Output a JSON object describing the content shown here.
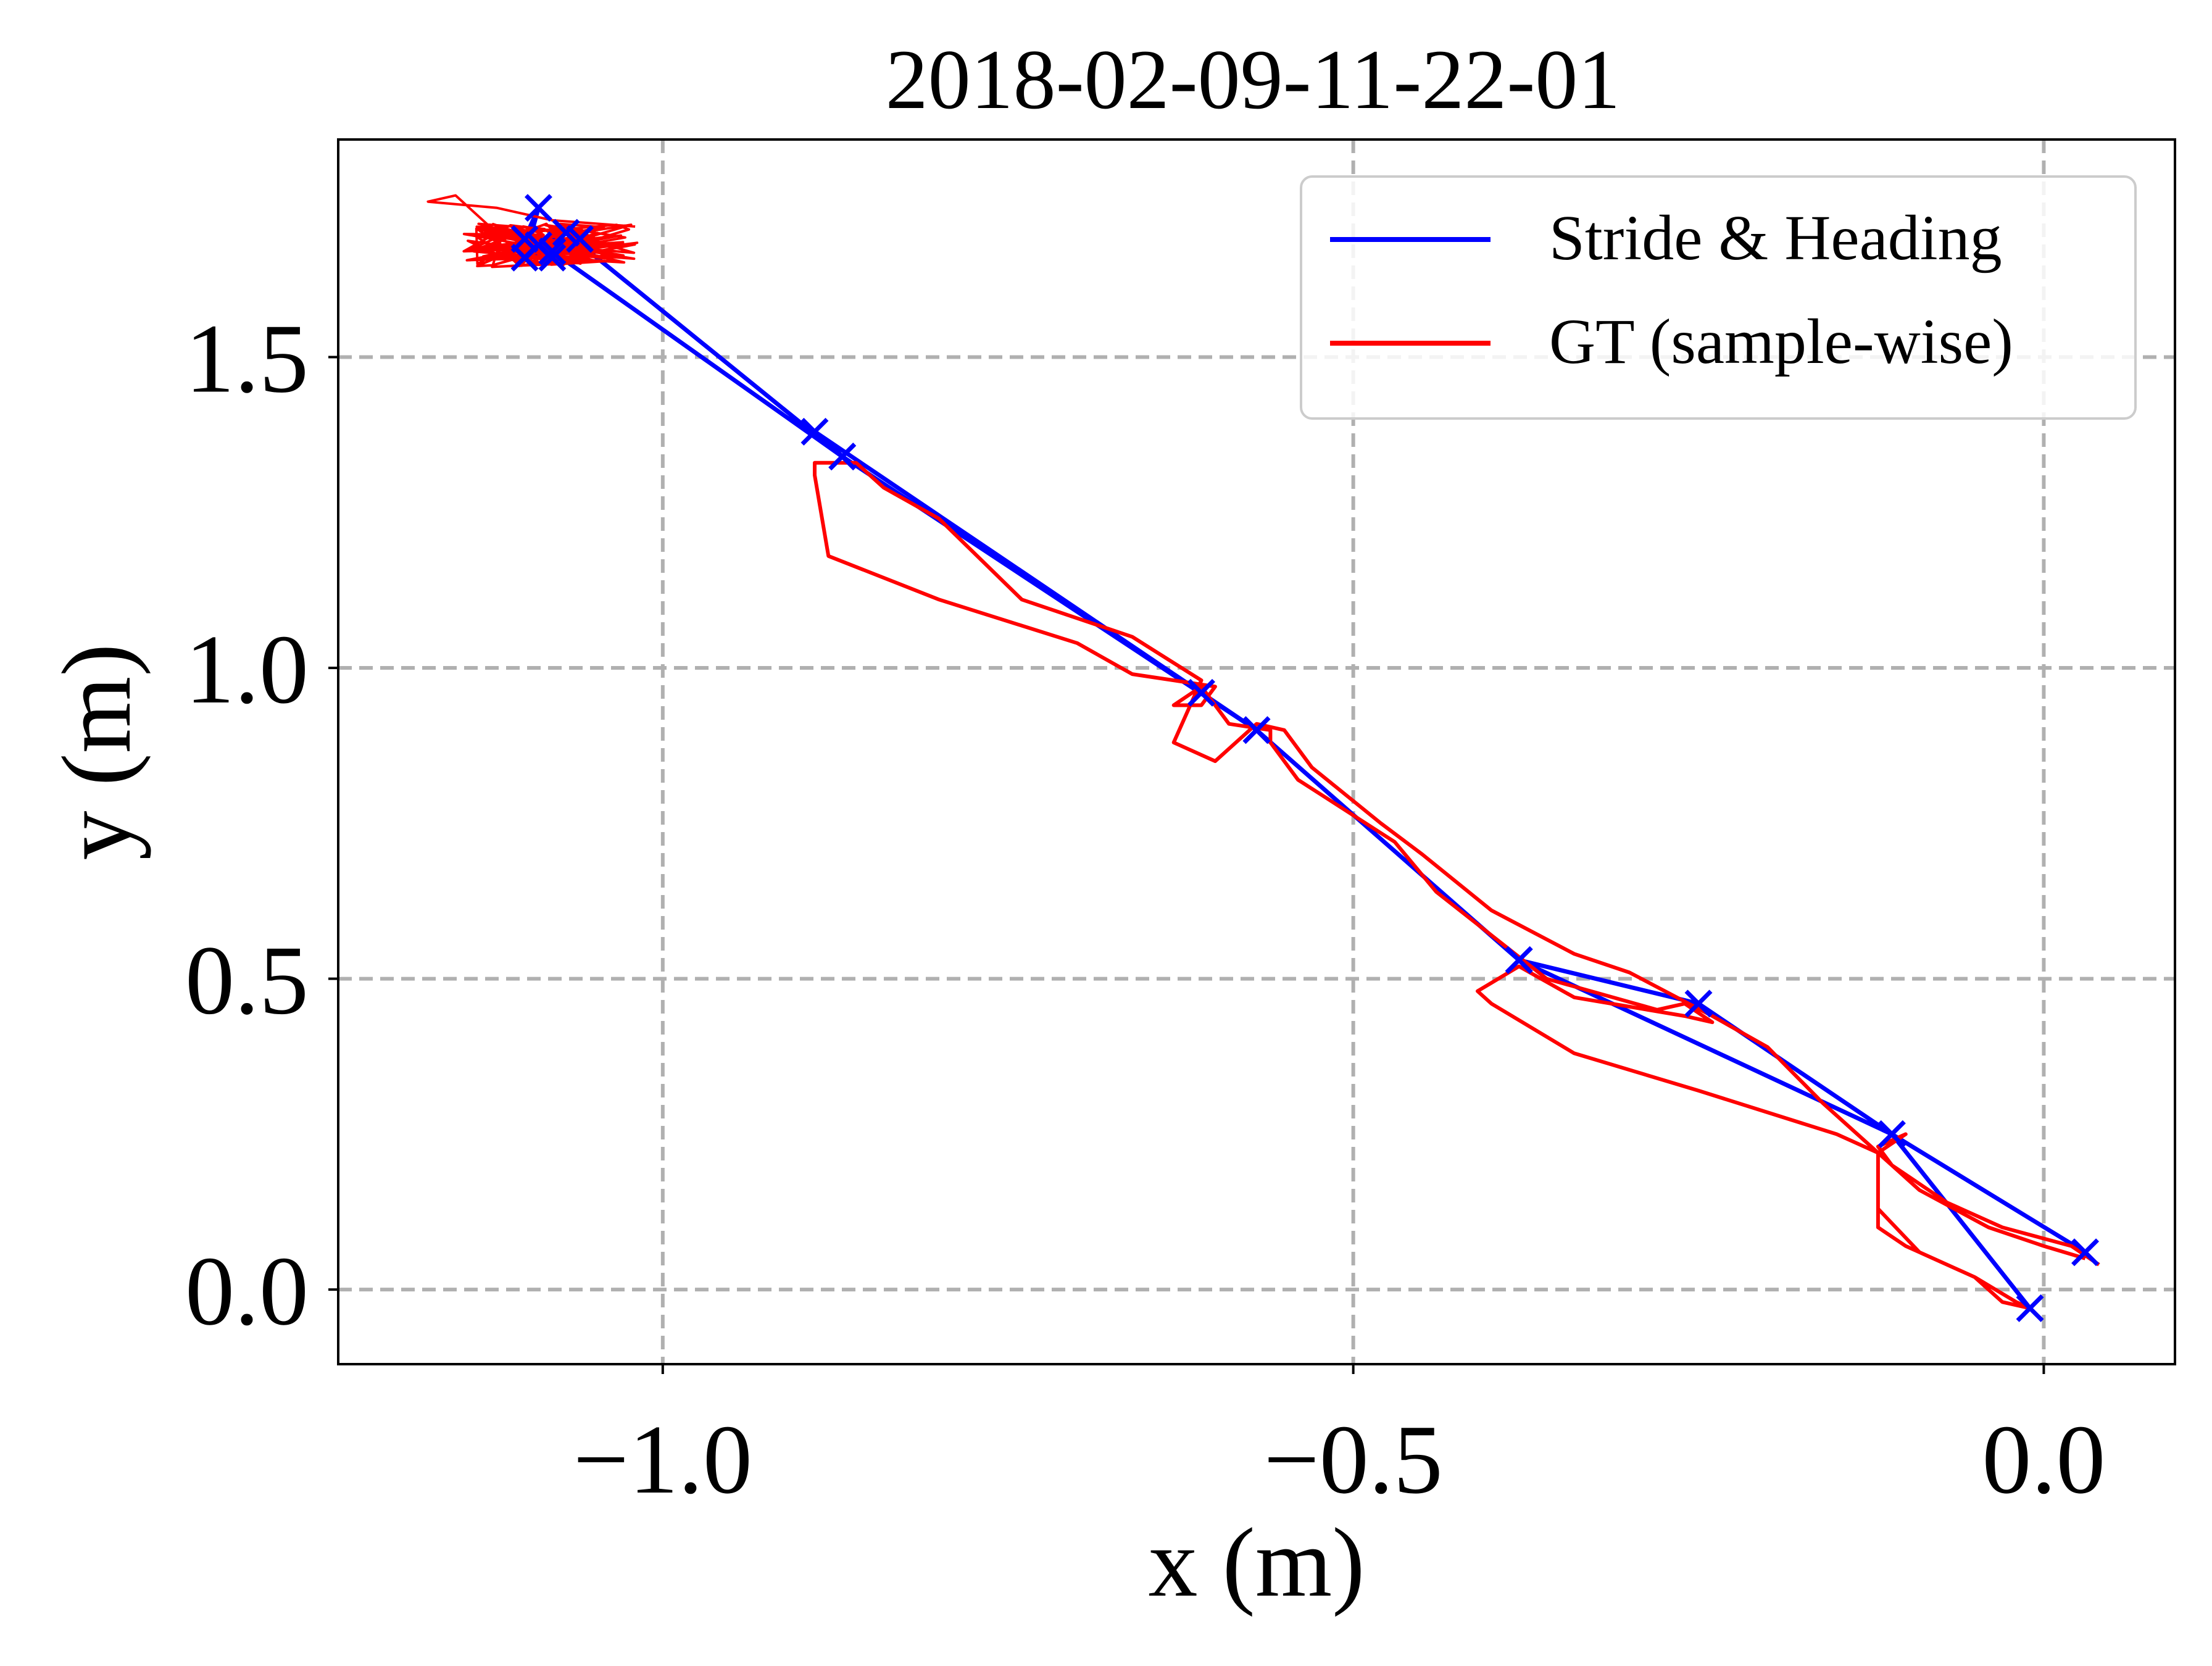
{
  "chart_data": {
    "type": "line",
    "title": "2018-02-09-11-22-01",
    "xlabel": "x (m)",
    "ylabel": "y (m)",
    "xlim": [
      -1.235,
      0.095
    ],
    "ylim": [
      -0.12,
      1.85
    ],
    "xticks": [
      {
        "value": -1.0,
        "label": "−1.0"
      },
      {
        "value": -0.5,
        "label": "−0.5"
      },
      {
        "value": 0.0,
        "label": "0.0"
      }
    ],
    "yticks": [
      {
        "value": 0.0,
        "label": "0.0"
      },
      {
        "value": 0.5,
        "label": "0.5"
      },
      {
        "value": 1.0,
        "label": "1.0"
      },
      {
        "value": 1.5,
        "label": "1.5"
      }
    ],
    "grid": true,
    "legend_position": "top-right",
    "series": [
      {
        "name": "Stride & Heading",
        "color": "#0000ff",
        "marker": "x",
        "points": [
          [
            0.03,
            0.06
          ],
          [
            -0.11,
            0.25
          ],
          [
            -0.25,
            0.46
          ],
          [
            -0.38,
            0.53
          ],
          [
            -0.57,
            0.9
          ],
          [
            -0.61,
            0.96
          ],
          [
            -0.89,
            1.38
          ],
          [
            -0.87,
            1.34
          ],
          [
            -1.08,
            1.67
          ],
          [
            -1.1,
            1.69
          ],
          [
            -1.09,
            1.74
          ],
          [
            -1.1,
            1.66
          ],
          [
            -1.06,
            1.69
          ],
          [
            -1.08,
            1.66
          ],
          [
            -1.09,
            1.68
          ],
          [
            -1.07,
            1.7
          ],
          [
            -0.87,
            1.34
          ],
          [
            -0.57,
            0.9
          ],
          [
            -0.38,
            0.53
          ],
          [
            -0.11,
            0.25
          ],
          [
            -0.01,
            -0.03
          ]
        ]
      },
      {
        "name": "GT (sample-wise)",
        "color": "#ff0000",
        "points": [
          [
            0.04,
            0.04
          ],
          [
            0.02,
            0.07
          ],
          [
            -0.03,
            0.1
          ],
          [
            -0.07,
            0.14
          ],
          [
            -0.11,
            0.2
          ],
          [
            -0.12,
            0.23
          ],
          [
            -0.1,
            0.25
          ],
          [
            -0.12,
            0.22
          ],
          [
            -0.12,
            0.1
          ],
          [
            -0.1,
            0.07
          ],
          [
            -0.05,
            0.02
          ],
          [
            -0.02,
            -0.02
          ],
          [
            -0.01,
            -0.03
          ],
          [
            -0.03,
            -0.02
          ],
          [
            -0.05,
            0.02
          ],
          [
            -0.09,
            0.06
          ],
          [
            -0.12,
            0.13
          ],
          [
            -0.12,
            0.22
          ],
          [
            -0.15,
            0.25
          ],
          [
            -0.25,
            0.32
          ],
          [
            -0.34,
            0.38
          ],
          [
            -0.4,
            0.46
          ],
          [
            -0.41,
            0.48
          ],
          [
            -0.38,
            0.52
          ],
          [
            -0.34,
            0.47
          ],
          [
            -0.26,
            0.44
          ],
          [
            -0.24,
            0.43
          ],
          [
            -0.26,
            0.46
          ],
          [
            -0.28,
            0.45
          ],
          [
            -0.36,
            0.5
          ],
          [
            -0.44,
            0.64
          ],
          [
            -0.47,
            0.72
          ],
          [
            -0.54,
            0.82
          ],
          [
            -0.56,
            0.88
          ],
          [
            -0.56,
            0.9
          ],
          [
            -0.59,
            0.91
          ],
          [
            -0.61,
            0.97
          ],
          [
            -0.63,
            0.94
          ],
          [
            -0.61,
            0.94
          ],
          [
            -0.6,
            0.97
          ],
          [
            -0.66,
            0.99
          ],
          [
            -0.7,
            1.04
          ],
          [
            -0.8,
            1.11
          ],
          [
            -0.88,
            1.18
          ],
          [
            -0.89,
            1.31
          ],
          [
            -0.89,
            1.33
          ],
          [
            -0.86,
            1.33
          ],
          [
            -0.84,
            1.29
          ],
          [
            -0.8,
            1.24
          ],
          [
            -0.74,
            1.11
          ],
          [
            -0.66,
            1.05
          ],
          [
            -0.61,
            0.98
          ],
          [
            -0.63,
            0.88
          ],
          [
            -0.6,
            0.85
          ],
          [
            -0.57,
            0.91
          ],
          [
            -0.55,
            0.9
          ],
          [
            -0.53,
            0.84
          ],
          [
            -0.48,
            0.75
          ],
          [
            -0.45,
            0.7
          ],
          [
            -0.4,
            0.61
          ],
          [
            -0.34,
            0.54
          ],
          [
            -0.3,
            0.51
          ],
          [
            -0.24,
            0.44
          ],
          [
            -0.2,
            0.39
          ],
          [
            -0.16,
            0.3
          ],
          [
            -0.12,
            0.22
          ],
          [
            -0.09,
            0.16
          ],
          [
            -0.04,
            0.1
          ],
          [
            0.0,
            0.07
          ],
          [
            0.03,
            0.05
          ]
        ],
        "blob_center": [
          -1.08,
          1.68
        ]
      }
    ]
  }
}
